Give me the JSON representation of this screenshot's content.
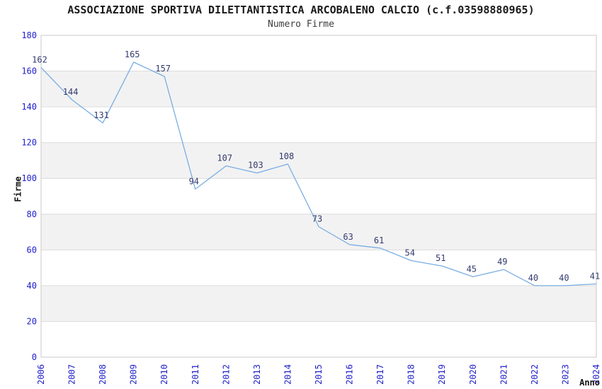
{
  "header": {
    "title": "ASSOCIAZIONE SPORTIVA DILETTANTISTICA ARCOBALENO CALCIO (c.f.03598880965)",
    "subtitle": "Numero Firme"
  },
  "chart_data": {
    "type": "line",
    "title": "ASSOCIAZIONE SPORTIVA DILETTANTISTICA ARCOBALENO CALCIO (c.f.03598880965)",
    "subtitle": "Numero Firme",
    "xlabel": "Anno",
    "ylabel": "Firme",
    "categories": [
      "2006",
      "2007",
      "2008",
      "2009",
      "2010",
      "2011",
      "2012",
      "2013",
      "2014",
      "2015",
      "2016",
      "2017",
      "2018",
      "2019",
      "2020",
      "2021",
      "2022",
      "2023",
      "2024"
    ],
    "values": [
      162,
      144,
      131,
      165,
      157,
      94,
      107,
      103,
      108,
      73,
      63,
      61,
      54,
      51,
      45,
      49,
      40,
      40,
      41
    ],
    "ylim": [
      0,
      180
    ],
    "ytick_step": 20,
    "grid": true,
    "legend": "none",
    "band_pattern": "alternating-gray-bands-every-other-20-units",
    "point_labels_shown": true
  },
  "palette": {
    "line": "#7aade2",
    "tick_label": "#2020cc",
    "data_label": "#333a6e",
    "band": "#f2f2f2",
    "gridline": "#dcdcdc",
    "plot_border": "#c8c8c8",
    "background": "#ffffff"
  }
}
